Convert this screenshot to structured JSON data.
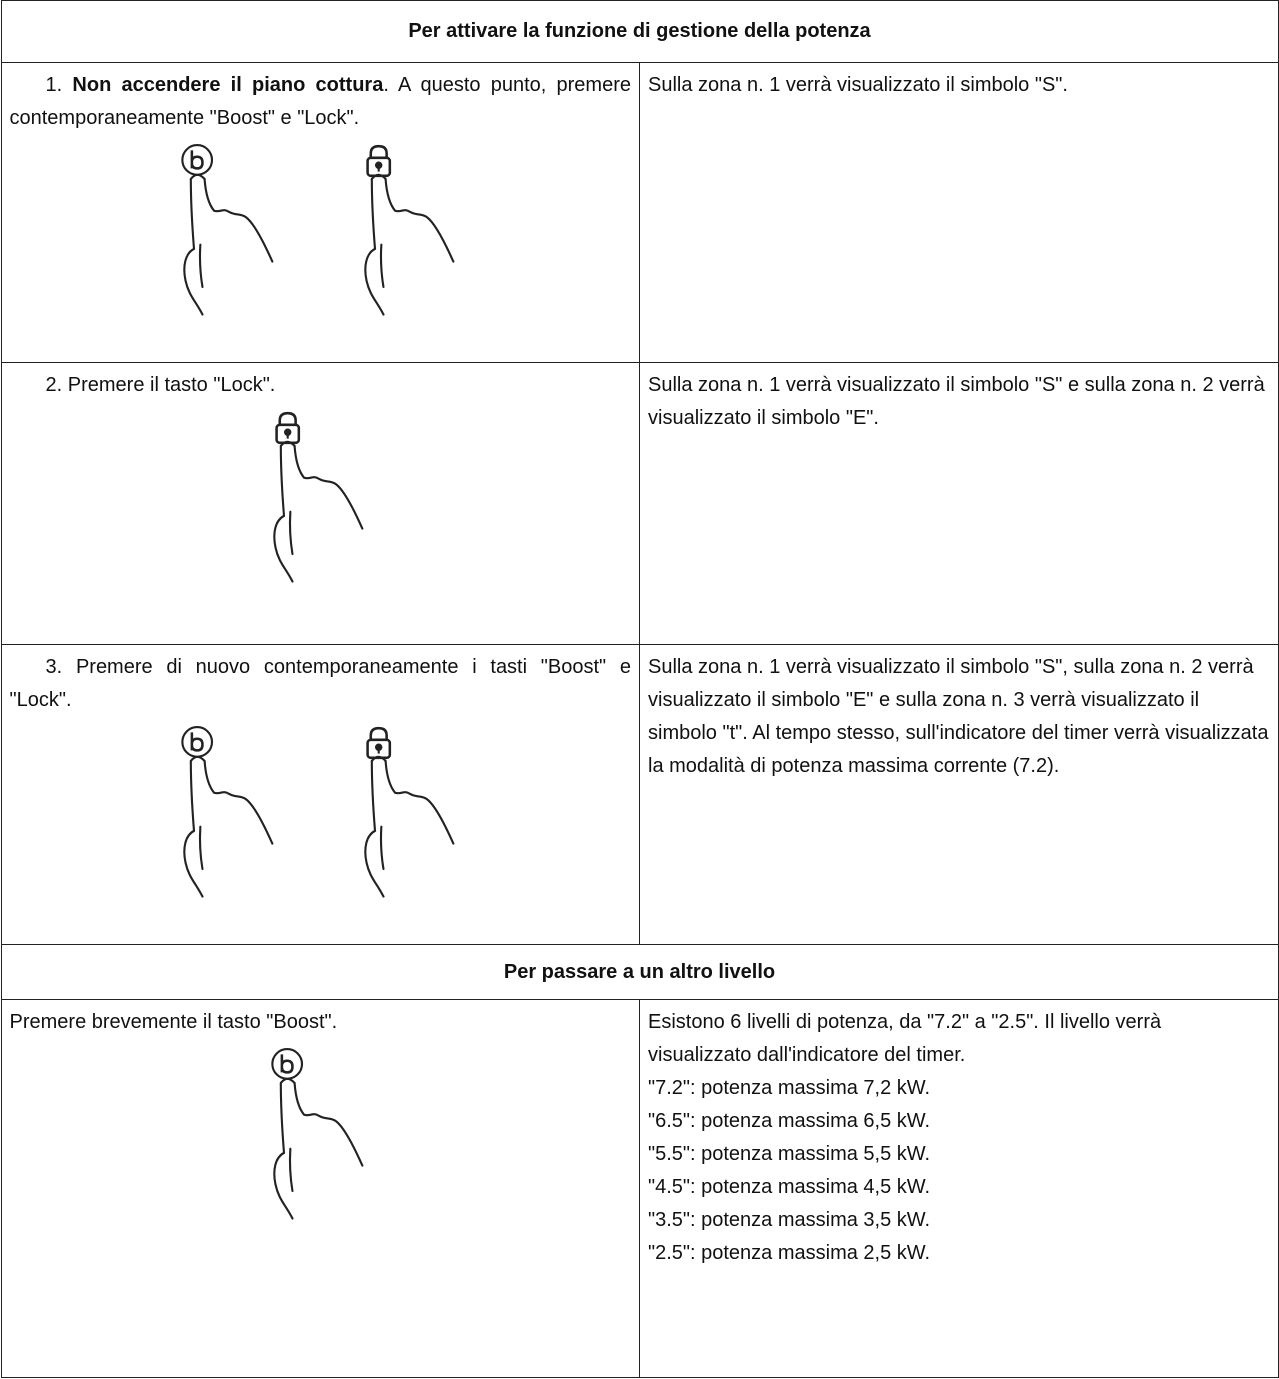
{
  "table": {
    "sections": [
      {
        "heading": "Per attivare la funzione di gestione della potenza",
        "rows": [
          {
            "step": "1.",
            "emphasis": "Non accendere il piano cottura",
            "instruction": ". A questo punto, premere contemporaneamente \"Boost\" e \"Lock\".",
            "result": "Sulla zona n. 1 verrà visualizzato il simbolo \"S\"."
          },
          {
            "step": "2.",
            "instruction": "Premere il tasto \"Lock\".",
            "result": "Sulla zona n. 1 verrà visualizzato il simbolo \"S\" e sulla zona n. 2 verrà visualizzato il simbolo \"E\"."
          },
          {
            "step": "3.",
            "instruction": "Premere di nuovo contemporaneamente i tasti \"Boost\" e \"Lock\".",
            "result": "Sulla zona n. 1 verrà visualizzato il simbolo \"S\", sulla zona n. 2 verrà visualizzato il simbolo \"E\" e sulla zona n. 3 verrà visualizzato il simbolo \"t\". Al tempo stesso, sull'indicatore del timer verrà visualizzata la modalità di potenza massima corrente (7.2)."
          }
        ]
      },
      {
        "heading": "Per passare a un altro livello",
        "rows": [
          {
            "instruction": "Premere brevemente il tasto \"Boost\".",
            "result": "Esistono 6 livelli di potenza, da \"7.2\" a \"2.5\". Il livello verrà visualizzato dall'indicatore del timer.",
            "levels": [
              "\"7.2\": potenza massima 7,2 kW.",
              "\"6.5\": potenza massima 6,5 kW.",
              "\"5.5\": potenza massima 5,5 kW.",
              "\"4.5\": potenza massima 4,5 kW.",
              "\"3.5\": potenza massima 3,5 kW.",
              "\"2.5\": potenza massima 2,5 kW."
            ]
          }
        ]
      }
    ]
  }
}
